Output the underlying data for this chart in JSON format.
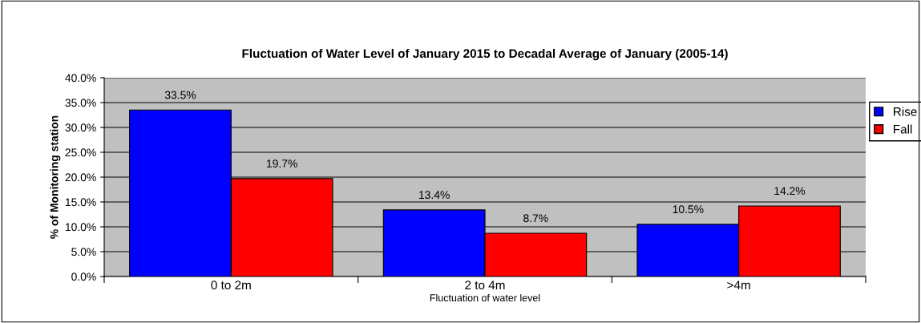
{
  "chart_data": {
    "type": "bar",
    "title": "Fluctuation of Water Level of January 2015 to Decadal Average of January (2005-14)",
    "xlabel": "Fluctuation of water level",
    "ylabel": "% of Monitoring station",
    "categories": [
      "0 to 2m",
      "2 to 4m",
      ">4m"
    ],
    "series": [
      {
        "name": "Rise",
        "color": "#0000ff",
        "values": [
          33.5,
          13.4,
          10.5
        ],
        "value_labels": [
          "33.5%",
          "13.4%",
          "10.5%"
        ]
      },
      {
        "name": "Fall",
        "color": "#ff0000",
        "values": [
          19.7,
          8.7,
          14.2
        ],
        "value_labels": [
          "19.7%",
          "8.7%",
          "14.2%"
        ]
      }
    ],
    "ylim": [
      0,
      40
    ],
    "yticks": [
      {
        "value": 0,
        "label": "0.0%"
      },
      {
        "value": 5,
        "label": "5.0%"
      },
      {
        "value": 10,
        "label": "10.0%"
      },
      {
        "value": 15,
        "label": "15.0%"
      },
      {
        "value": 20,
        "label": "20.0%"
      },
      {
        "value": 25,
        "label": "25.0%"
      },
      {
        "value": 30,
        "label": "30.0%"
      },
      {
        "value": 35,
        "label": "35.0%"
      },
      {
        "value": 40,
        "label": "40.0%"
      }
    ],
    "grid": "y",
    "legend": "right"
  }
}
